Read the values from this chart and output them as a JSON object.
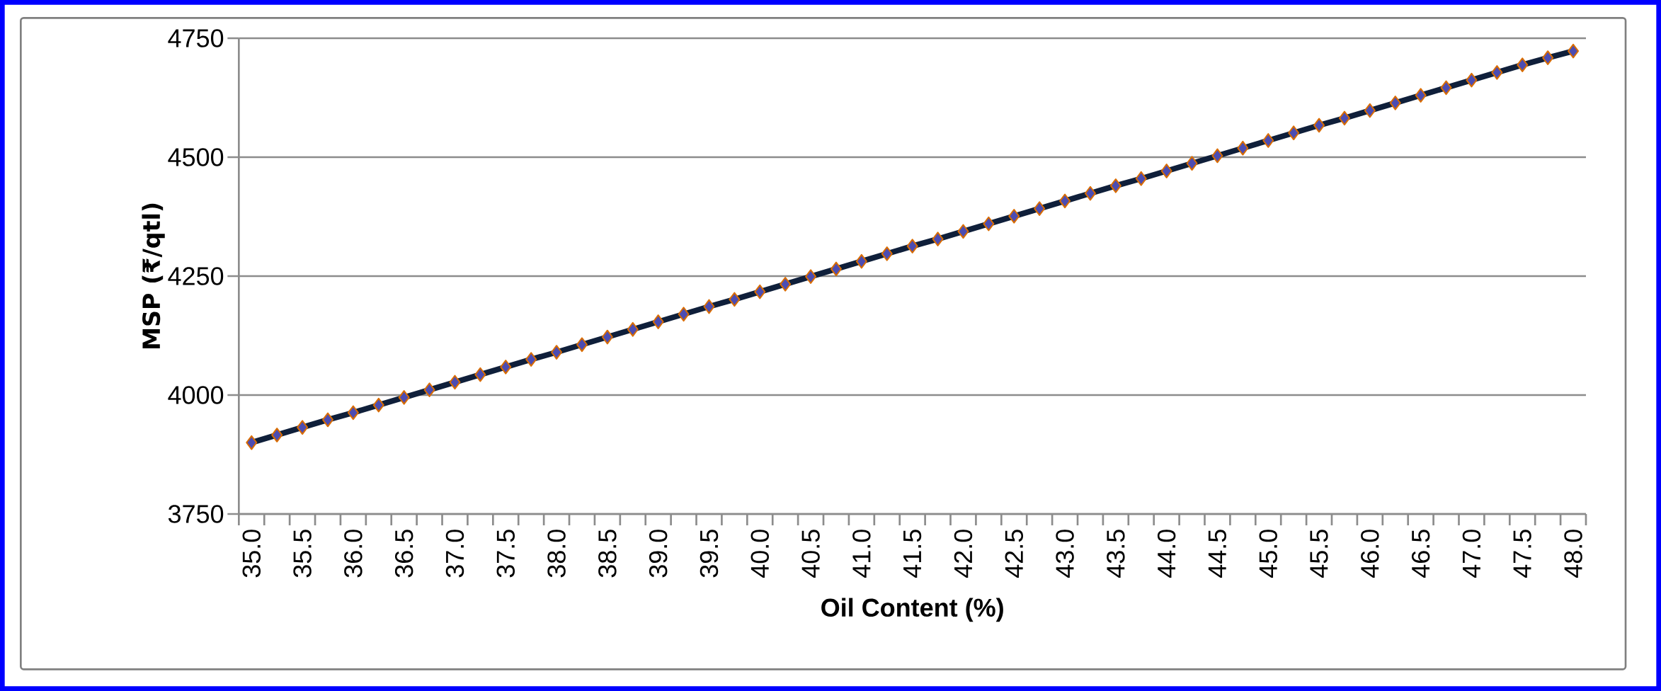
{
  "chart_data": {
    "type": "line",
    "xlabel": "Oil Content (%)",
    "ylabel": "MSP (₹/qtl)",
    "categories": [
      "35.0",
      null,
      "35.5",
      null,
      "36.0",
      null,
      "36.5",
      null,
      "37.0",
      null,
      "37.5",
      null,
      "38.0",
      null,
      "38.5",
      null,
      "39.0",
      null,
      "39.5",
      null,
      "40.0",
      null,
      "40.5",
      null,
      "41.0",
      null,
      "41.5",
      null,
      "42.0",
      null,
      "42.5",
      null,
      "43.0",
      null,
      "43.5",
      null,
      "44.0",
      null,
      "44.5",
      null,
      "45.0",
      null,
      "45.5",
      null,
      "46.0",
      null,
      "46.5",
      null,
      "47.0",
      null,
      "47.5",
      null,
      "48.0"
    ],
    "series": [
      {
        "color": "#0f1f3a",
        "values": [
          3900,
          3916,
          3932,
          3948,
          3963,
          3979,
          3995,
          4011,
          4027,
          4043,
          4059,
          4075,
          4090,
          4106,
          4122,
          4138,
          4154,
          4170,
          4186,
          4201,
          4217,
          4233,
          4249,
          4265,
          4281,
          4297,
          4313,
          4328,
          4344,
          4360,
          4376,
          4392,
          4408,
          4424,
          4440,
          4455,
          4471,
          4487,
          4503,
          4519,
          4535,
          4551,
          4567,
          4582,
          4598,
          4614,
          4630,
          4646,
          4662,
          4678,
          4694,
          4709,
          4723
        ]
      }
    ],
    "ylim": [
      3750,
      4750
    ],
    "yticks": [
      3750,
      4000,
      4250,
      4500,
      4750
    ],
    "grid": "y",
    "marker": "diamond",
    "line_style": "solid"
  }
}
